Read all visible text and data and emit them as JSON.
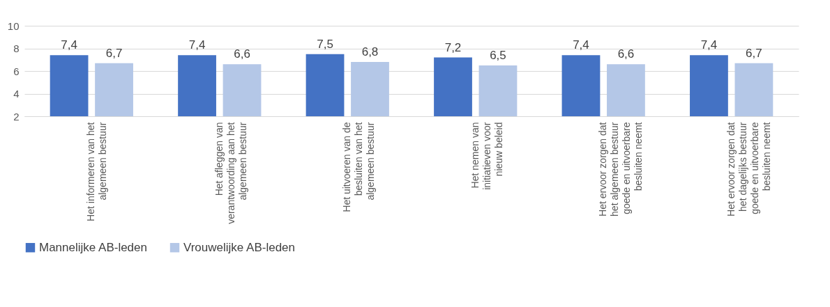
{
  "chart_data": {
    "type": "bar",
    "categories": [
      "Het informeren van het algemeen bestuur",
      "Het afleggen van verantwoording aan het algemeen bestuur",
      "Het uitvoeren van de besluiten van het algemeen bestuur",
      "Het nemen van initiatieven voor nieuw beleid",
      "Het ervoor zorgen dat het algemeen bestuur goede en uitvoerbare besluiten neemt",
      "Het ervoor zorgen dat het dagelijks bestuur goede en uitvoerbare besluiten neemt"
    ],
    "series": [
      {
        "name": "Mannelijke AB-leden",
        "color": "#4472c4",
        "values": [
          7.4,
          7.4,
          7.5,
          7.2,
          7.4,
          7.4
        ],
        "value_labels": [
          "7,4",
          "7,4",
          "7,5",
          "7,2",
          "7,4",
          "7,4"
        ]
      },
      {
        "name": "Vrouwelijke AB-leden",
        "color": "#b4c7e7",
        "values": [
          6.7,
          6.6,
          6.8,
          6.5,
          6.6,
          6.7
        ],
        "value_labels": [
          "6,7",
          "6,6",
          "6,8",
          "6,5",
          "6,6",
          "6,7"
        ]
      }
    ],
    "ylim": [
      2,
      10
    ],
    "yticks": [
      2,
      4,
      6,
      8,
      10
    ],
    "grid": "y",
    "legend": "bottom"
  }
}
